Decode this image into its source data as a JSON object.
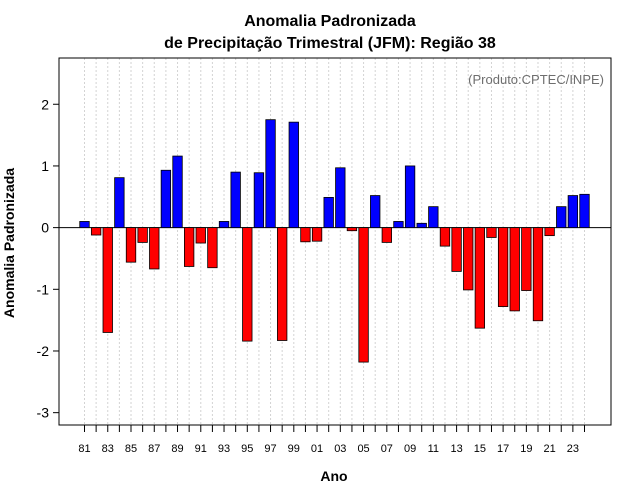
{
  "chart_data": {
    "type": "bar",
    "title_line1": "Anomalia Padronizada",
    "title_line2": "de Precipitação Trimestral (JFM): Região 38",
    "xlabel": "Ano",
    "ylabel": "Anomalia Padronizada",
    "credit": "(Produto:CPTEC/INPE)",
    "ylim": [
      -3.2,
      2.75
    ],
    "yticks": [
      -3,
      -2,
      -1,
      0,
      1,
      2
    ],
    "ytick_labels": [
      "-3",
      "-2",
      "-1",
      "0",
      "1",
      "2"
    ],
    "xtick_labels": [
      "81",
      "83",
      "85",
      "87",
      "89",
      "91",
      "93",
      "95",
      "97",
      "99",
      "01",
      "03",
      "05",
      "07",
      "09",
      "11",
      "13",
      "15",
      "17",
      "19",
      "21",
      "23"
    ],
    "grid": true,
    "categories": [
      "1981",
      "1982",
      "1983",
      "1984",
      "1985",
      "1986",
      "1987",
      "1988",
      "1989",
      "1990",
      "1991",
      "1992",
      "1993",
      "1994",
      "1995",
      "1996",
      "1997",
      "1998",
      "1999",
      "2000",
      "2001",
      "2002",
      "2003",
      "2004",
      "2005",
      "2006",
      "2007",
      "2008",
      "2009",
      "2010",
      "2011",
      "2012",
      "2013",
      "2014",
      "2015",
      "2016",
      "2017",
      "2018",
      "2019",
      "2020",
      "2021",
      "2022",
      "2023",
      "2024"
    ],
    "values": [
      0.1,
      -0.12,
      -1.7,
      0.81,
      -0.56,
      -0.24,
      -0.67,
      0.93,
      1.16,
      -0.63,
      -0.25,
      -0.65,
      0.1,
      0.9,
      -1.84,
      0.89,
      1.75,
      -1.83,
      1.71,
      -0.23,
      -0.22,
      0.49,
      0.97,
      -0.05,
      -2.18,
      0.52,
      -0.24,
      0.1,
      1.0,
      0.07,
      0.34,
      -0.3,
      -0.71,
      -1.01,
      -1.63,
      -0.16,
      -1.28,
      -1.35,
      -1.02,
      -1.51,
      -0.13,
      0.34,
      0.52,
      0.54
    ],
    "positive_color": "#0000ff",
    "negative_color": "#ff0000"
  }
}
